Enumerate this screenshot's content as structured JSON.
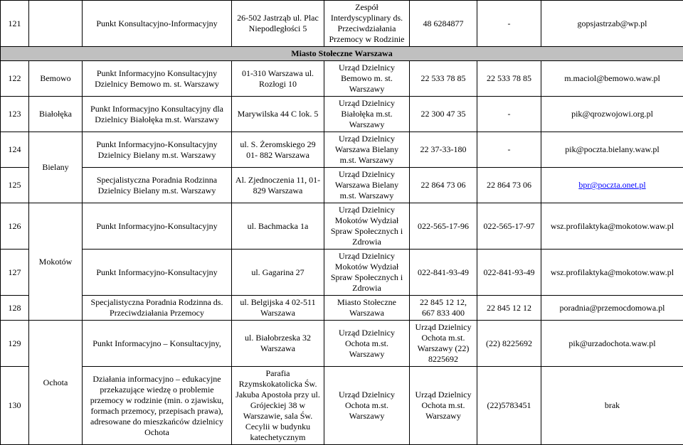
{
  "colors": {
    "section_bg": "#c0c0c0",
    "border": "#000000",
    "link": "#0000ff",
    "text": "#000000",
    "background": "#ffffff"
  },
  "section_header": "Miasto Stołeczne Warszawa",
  "rows": [
    {
      "id": "121",
      "district": "",
      "name": "Punkt Konsultacyjno-Informacyjny",
      "address": "26-502 Jastrząb ul. Plac Niepodległości 5",
      "org": "Zespół Interdyscyplinary ds. Przeciwdziałania Przemocy w Rodzinie",
      "phone1": "48 6284877",
      "phone2": "-",
      "email": "gopsjastrzab@wp.pl",
      "email_link": false
    },
    {
      "id": "122",
      "district": "Bemowo",
      "name": "Punkt Informacyjno Konsultacyjny Dzielnicy Bemowo m. st. Warszawy",
      "address": "01-310 Warszawa ul. Rozłogi 10",
      "org": "Urząd Dzielnicy Bemowo m. st. Warszawy",
      "phone1": "22 533 78 85",
      "phone2": "22 533 78 85",
      "email": "m.maciol@bemowo.waw.pl",
      "email_link": false
    },
    {
      "id": "123",
      "district": "Białołęka",
      "name": "Punkt Informacyjno Konsultacyjny dla Dzielnicy Białołęka m.st. Warszawy",
      "address": "Marywilska 44 C lok. 5",
      "org": "Urząd Dzielnicy Białołęka m.st. Warszawy",
      "phone1": "22 300 47 35",
      "phone2": "-",
      "email": "pik@qrozwojowi.org.pl",
      "email_link": false
    },
    {
      "id": "124",
      "district": "Bielany",
      "name": "Punkt Informacyjno-Konsultacyjny Dzielnicy Bielany m.st. Warszawy",
      "address": "ul. S. Żeromskiego 29 01- 882 Warszawa",
      "org": "Urząd Dzielnicy Warszawa Bielany m.st. Warszawy",
      "phone1": "22 37-33-180",
      "phone2": "-",
      "email": "pik@poczta.bielany.waw.pl",
      "email_link": false
    },
    {
      "id": "125",
      "name": "Specjalistyczna Poradnia Rodzinna Dzielnicy Bielany m.st. Warszawy",
      "address": "Al. Zjednoczenia 11, 01-829 Warszawa",
      "org": "Urząd Dzielnicy Warszawa Bielany m.st. Warszawy",
      "phone1": "22 864 73 06",
      "phone2": "22 864 73 06",
      "email": "bpr@poczta.onet.pl",
      "email_link": true
    },
    {
      "id": "126",
      "district": "Mokotów",
      "name": "Punkt Informacyjno-Konsultacyjny",
      "address": "ul. Bachmacka 1a",
      "org": "Urząd Dzielnicy Mokotów Wydział Spraw Społecznych i Zdrowia",
      "phone1": "022-565-17-96",
      "phone2": "022-565-17-97",
      "email": "wsz.profilaktyka@mokotow.waw.pl",
      "email_link": false
    },
    {
      "id": "127",
      "name": "Punkt Informacyjno-Konsultacyjny",
      "address": "ul. Gagarina 27",
      "org": "Urząd Dzielnicy Mokotów Wydział Spraw Społecznych i Zdrowia",
      "phone1": "022-841-93-49",
      "phone2": "022-841-93-49",
      "email": "wsz.profilaktyka@mokotow.waw.pl",
      "email_link": false
    },
    {
      "id": "128",
      "name": "Specjalistyczna Poradnia Rodzinna ds. Przeciwdziałania Przemocy",
      "address": "ul. Belgijska 4 02-511 Warszawa",
      "org": "Miasto Stołeczne Warszawa",
      "phone1": "22 845 12 12, 667 833 400",
      "phone2": "22 845 12 12",
      "email": "poradnia@przemocdomowa.pl",
      "email_link": false
    },
    {
      "id": "129",
      "district": "Ochota",
      "name": "Punkt Informacyjno – Konsultacyjny,",
      "address": "ul. Białobrzeska 32 Warszawa",
      "org": "Urząd Dzielnicy Ochota m.st. Warszawy",
      "phone1": "Urząd Dzielnicy Ochota m.st. Warszawy (22) 8225692",
      "phone2": "(22) 8225692",
      "email": "pik@urzadochota.waw.pl",
      "email_link": false
    },
    {
      "id": "130",
      "name": "Działania informacyjno – edukacyjne przekazujące wiedzę o problemie przemocy w rodzinie (min. o zjawisku, formach przemocy, przepisach prawa), adresowane do mieszkańców dzielnicy Ochota",
      "address": "Parafia Rzymskokatolicka Św. Jakuba Apostoła przy ul. Grójeckiej 38 w Warszawie,  sala Św. Cecylii w budynku katechetycznym",
      "org": "Urząd Dzielnicy Ochota m.st. Warszawy",
      "phone1": "Urząd Dzielnicy Ochota m.st. Warszawy",
      "phone2": "(22)5783451",
      "email": "brak",
      "email_link": false
    }
  ]
}
